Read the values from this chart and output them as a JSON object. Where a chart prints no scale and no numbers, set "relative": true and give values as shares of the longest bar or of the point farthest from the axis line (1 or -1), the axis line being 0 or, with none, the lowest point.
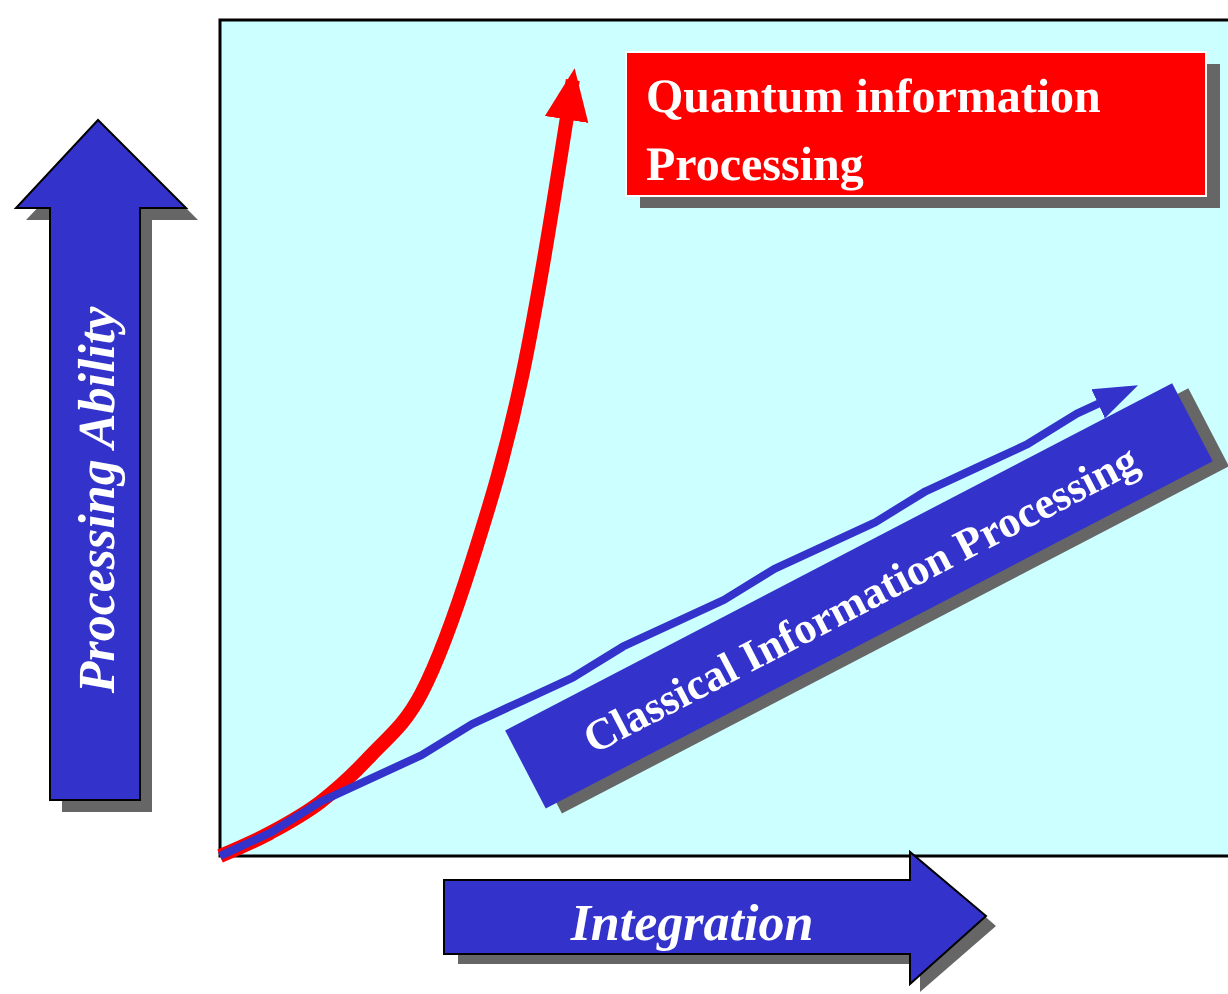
{
  "chart_data": {
    "type": "line",
    "relative": true,
    "xlabel": "Integration",
    "ylabel": "Processing Ability",
    "categories": [
      null,
      null,
      null,
      null,
      null,
      null,
      null,
      null,
      null,
      null,
      null,
      null,
      null,
      null,
      null,
      null,
      null,
      null,
      null,
      null
    ],
    "series": [
      {
        "name": "Quantum information Processing",
        "color": "#ff0000",
        "values": [
          0,
          0.03,
          0.07,
          0.13,
          0.21,
          0.38,
          0.62,
          1,
          null,
          null,
          null,
          null,
          null,
          null,
          null,
          null,
          null,
          null,
          null,
          null
        ]
      },
      {
        "name": "Classical Information Processing",
        "color": "#3333cc",
        "values": [
          0,
          0.03,
          0.07,
          0.1,
          0.13,
          0.17,
          0.2,
          0.23,
          0.27,
          0.3,
          0.33,
          0.37,
          0.4,
          0.43,
          0.47,
          0.5,
          0.53,
          0.57,
          0.6,
          null
        ]
      }
    ],
    "legend": "top right",
    "grid": false,
    "marker": "none",
    "line_style": "solid"
  }
}
